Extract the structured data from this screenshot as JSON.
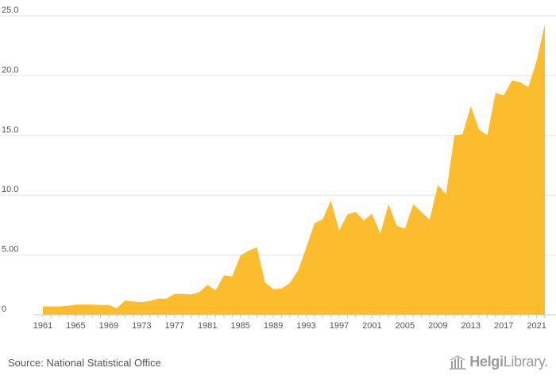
{
  "chart_data": {
    "type": "area",
    "title": "",
    "xlabel": "",
    "ylabel": "",
    "x": [
      1961,
      1962,
      1963,
      1964,
      1965,
      1966,
      1967,
      1968,
      1969,
      1970,
      1971,
      1972,
      1973,
      1974,
      1975,
      1976,
      1977,
      1978,
      1979,
      1980,
      1981,
      1982,
      1983,
      1984,
      1985,
      1986,
      1987,
      1988,
      1989,
      1990,
      1991,
      1992,
      1993,
      1994,
      1995,
      1996,
      1997,
      1998,
      1999,
      2000,
      2001,
      2002,
      2003,
      2004,
      2005,
      2006,
      2007,
      2008,
      2009,
      2010,
      2011,
      2012,
      2013,
      2014,
      2015,
      2016,
      2017,
      2018,
      2019,
      2020,
      2021,
      2022
    ],
    "values": [
      0.7,
      0.7,
      0.7,
      0.75,
      0.85,
      0.85,
      0.85,
      0.82,
      0.82,
      0.55,
      1.2,
      1.1,
      1.05,
      1.15,
      1.35,
      1.35,
      1.75,
      1.75,
      1.7,
      1.9,
      2.5,
      2.05,
      3.3,
      3.2,
      4.95,
      5.35,
      5.65,
      2.7,
      2.15,
      2.2,
      2.65,
      3.7,
      5.6,
      7.65,
      8.0,
      9.55,
      7.05,
      8.4,
      8.6,
      7.9,
      8.45,
      6.8,
      9.25,
      7.45,
      7.2,
      9.25,
      8.6,
      7.95,
      10.85,
      10.1,
      15.0,
      15.1,
      17.45,
      15.5,
      15.0,
      18.55,
      18.35,
      19.6,
      19.45,
      19.05,
      21.25,
      24.3
    ],
    "x_tick_labels": [
      "1961",
      "1965",
      "1969",
      "1973",
      "1977",
      "1981",
      "1985",
      "1989",
      "1993",
      "1997",
      "2001",
      "2005",
      "2009",
      "2013",
      "2017",
      "2021"
    ],
    "y_tick_labels": [
      "0",
      "5.00",
      "10.0",
      "15.0",
      "20.0",
      "25.0"
    ],
    "y_ticks": [
      0,
      5,
      10,
      15,
      20,
      25
    ],
    "xlim": [
      1961,
      2022
    ],
    "ylim": [
      0,
      25
    ],
    "grid": true,
    "legend": "none",
    "colors": {
      "fill": "#FBBD2E",
      "grid": "#e6e6e6",
      "text": "#555555"
    }
  },
  "source": "Source: National Statistical Office",
  "brand": {
    "part1": "Helgi",
    "part2": "Library."
  }
}
